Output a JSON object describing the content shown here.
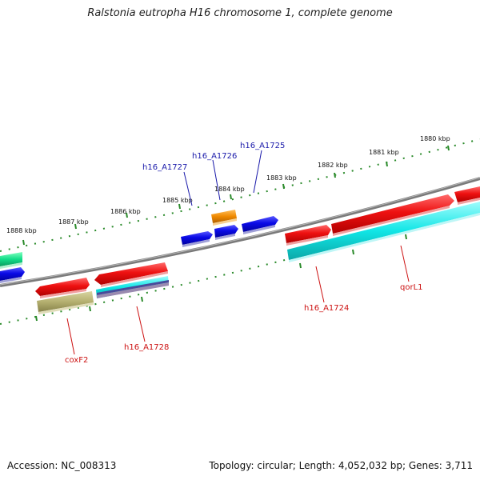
{
  "title": "Ralstonia eutropha H16 chromosome 1, complete genome",
  "footer": {
    "accession": "Accession: NC_008313",
    "stats": "Topology: circular; Length: 4,052,032 bp; Genes: 3,711"
  },
  "ticks": [
    {
      "label": "1880 kbp"
    },
    {
      "label": "1881 kbp"
    },
    {
      "label": "1882 kbp"
    },
    {
      "label": "1883 kbp"
    },
    {
      "label": "1884 kbp"
    },
    {
      "label": "1885 kbp"
    },
    {
      "label": "1886 kbp"
    },
    {
      "label": "1887 kbp"
    },
    {
      "label": "1888 kbp"
    }
  ],
  "gene_labels": {
    "h16_A1727": "h16_A1727",
    "h16_A1726": "h16_A1726",
    "h16_A1725": "h16_A1725",
    "coxF2": "coxF2",
    "h16_A1728": "h16_A1728",
    "h16_A1724": "h16_A1724",
    "qorL1": "qorL1"
  },
  "colors": {
    "cds": "#ee1111",
    "rna_blue": "#0a0ae6",
    "orange": "#f08a00",
    "cyan": "#11e6e6",
    "khaki": "#b5b070",
    "green": "#11dd88",
    "backbone": "#808080",
    "tick": "#2a8a2a"
  }
}
